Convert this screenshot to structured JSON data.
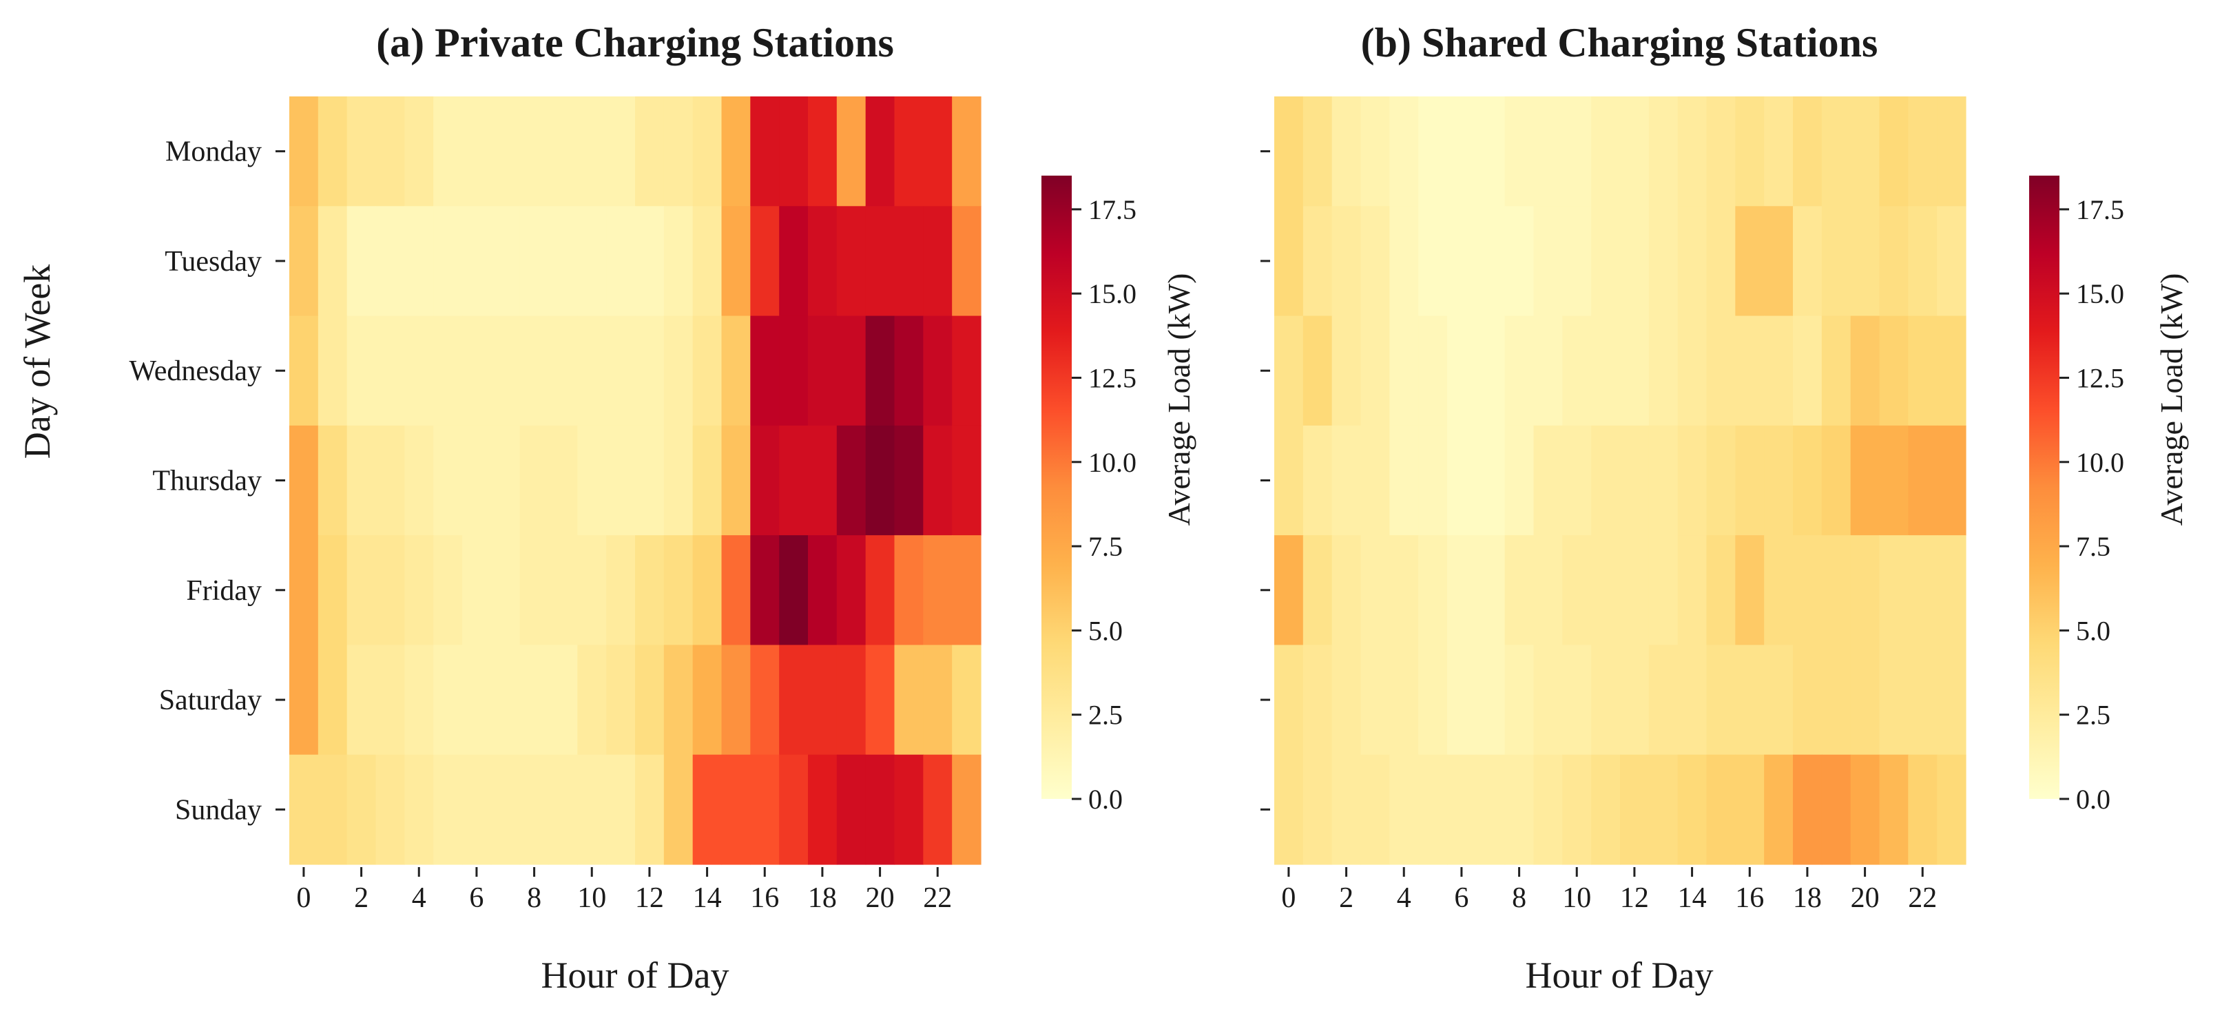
{
  "chart_data": {
    "type": "heatmap",
    "value_range": [
      0,
      18.5
    ],
    "colormap": [
      "#ffffcc",
      "#ffeda0",
      "#fed976",
      "#feb24c",
      "#fd8d3c",
      "#fc4e2a",
      "#e31a1c",
      "#bd0026",
      "#800026"
    ],
    "days": [
      "Monday",
      "Tuesday",
      "Wednesday",
      "Thursday",
      "Friday",
      "Saturday",
      "Sunday"
    ],
    "hours": [
      0,
      1,
      2,
      3,
      4,
      5,
      6,
      7,
      8,
      9,
      10,
      11,
      12,
      13,
      14,
      15,
      16,
      17,
      18,
      19,
      20,
      21,
      22,
      23
    ],
    "x_tick_labels": [
      "0",
      "2",
      "4",
      "6",
      "8",
      "10",
      "12",
      "14",
      "16",
      "18",
      "20",
      "22"
    ],
    "xlabel": "Hour of Day",
    "ylabel": "Day of Week",
    "colorbar": {
      "label": "Average Load (kW)",
      "ticks": [
        "0.0",
        "2.5",
        "5.0",
        "7.5",
        "10.0",
        "12.5",
        "15.0",
        "17.5"
      ]
    },
    "panels": [
      {
        "title": "(a) Private Charging Stations",
        "values": [
          [
            6.0,
            4.0,
            3.0,
            3.0,
            2.5,
            1.5,
            1.5,
            1.5,
            1.5,
            1.5,
            1.5,
            1.5,
            2.5,
            2.5,
            3.0,
            7.0,
            14.5,
            14.5,
            13.5,
            8.0,
            15.0,
            13.5,
            13.5,
            8.0
          ],
          [
            5.5,
            2.5,
            1.0,
            1.0,
            1.0,
            1.0,
            1.0,
            1.0,
            1.0,
            1.0,
            1.0,
            1.0,
            1.0,
            1.5,
            2.5,
            7.5,
            13.0,
            16.0,
            15.0,
            14.5,
            14.5,
            14.5,
            14.5,
            9.5
          ],
          [
            5.0,
            2.5,
            1.5,
            1.5,
            1.5,
            1.5,
            1.5,
            1.5,
            1.5,
            1.5,
            1.5,
            1.5,
            1.5,
            2.0,
            3.0,
            5.5,
            16.0,
            16.0,
            15.5,
            15.5,
            18.0,
            17.0,
            15.5,
            14.5
          ],
          [
            7.5,
            4.0,
            2.5,
            2.5,
            2.0,
            1.5,
            1.5,
            1.5,
            2.0,
            2.0,
            1.5,
            1.5,
            1.5,
            2.0,
            3.5,
            6.0,
            15.5,
            15.0,
            15.0,
            17.5,
            18.5,
            18.0,
            15.0,
            14.5
          ],
          [
            7.5,
            4.5,
            3.0,
            3.0,
            2.5,
            2.0,
            1.5,
            1.5,
            2.0,
            2.0,
            2.0,
            2.5,
            3.5,
            4.0,
            5.0,
            10.5,
            17.0,
            18.5,
            16.5,
            15.5,
            13.0,
            10.0,
            9.5,
            9.5
          ],
          [
            7.5,
            4.5,
            2.5,
            2.5,
            2.0,
            1.5,
            1.5,
            1.5,
            1.5,
            1.5,
            2.5,
            3.0,
            4.0,
            5.5,
            7.0,
            9.0,
            11.0,
            13.0,
            13.0,
            13.0,
            11.5,
            6.0,
            6.0,
            4.5
          ],
          [
            4.0,
            4.0,
            3.5,
            3.0,
            2.5,
            2.0,
            2.0,
            2.0,
            2.0,
            2.0,
            2.0,
            2.0,
            3.0,
            5.5,
            11.5,
            11.5,
            11.5,
            12.5,
            14.0,
            15.0,
            15.0,
            14.5,
            12.5,
            8.5
          ]
        ]
      },
      {
        "title": "(b) Shared Charging Stations",
        "values": [
          [
            4.5,
            3.5,
            2.0,
            1.5,
            1.0,
            0.5,
            0.5,
            0.5,
            1.0,
            1.0,
            1.0,
            1.5,
            1.5,
            2.0,
            2.5,
            3.0,
            3.5,
            3.0,
            4.0,
            3.5,
            3.5,
            4.5,
            4.0,
            4.0
          ],
          [
            4.5,
            3.0,
            2.5,
            2.0,
            1.0,
            0.5,
            0.5,
            0.5,
            0.5,
            1.0,
            1.0,
            1.5,
            1.5,
            2.0,
            2.5,
            3.0,
            5.5,
            5.5,
            3.0,
            3.5,
            3.5,
            4.0,
            3.5,
            3.0
          ],
          [
            3.5,
            4.5,
            2.5,
            2.0,
            1.0,
            1.0,
            0.5,
            0.5,
            1.0,
            1.0,
            1.5,
            1.5,
            1.5,
            2.0,
            2.5,
            3.0,
            3.0,
            3.0,
            2.5,
            4.0,
            5.5,
            5.0,
            4.5,
            4.5
          ],
          [
            3.5,
            2.5,
            2.0,
            2.0,
            1.0,
            1.0,
            0.5,
            0.5,
            1.0,
            2.0,
            2.0,
            2.5,
            2.5,
            2.5,
            3.0,
            3.5,
            4.0,
            4.0,
            4.5,
            5.0,
            7.0,
            7.0,
            7.5,
            7.5
          ],
          [
            7.0,
            3.5,
            2.5,
            2.0,
            2.0,
            1.5,
            1.0,
            1.0,
            2.0,
            2.0,
            2.5,
            2.5,
            2.5,
            2.5,
            3.0,
            4.0,
            5.5,
            4.0,
            4.0,
            4.0,
            4.0,
            3.5,
            3.5,
            3.5
          ],
          [
            3.5,
            3.0,
            2.5,
            2.0,
            2.0,
            1.5,
            1.0,
            1.0,
            1.5,
            2.0,
            2.0,
            2.5,
            2.5,
            3.0,
            3.0,
            3.5,
            3.5,
            3.5,
            4.0,
            4.0,
            4.0,
            3.5,
            3.5,
            3.5
          ],
          [
            3.5,
            3.0,
            2.5,
            2.5,
            2.0,
            2.0,
            2.0,
            2.0,
            2.0,
            2.5,
            3.0,
            3.5,
            4.0,
            4.0,
            4.5,
            5.0,
            5.0,
            6.5,
            8.5,
            8.5,
            7.5,
            6.5,
            5.0,
            4.5
          ]
        ]
      }
    ]
  }
}
